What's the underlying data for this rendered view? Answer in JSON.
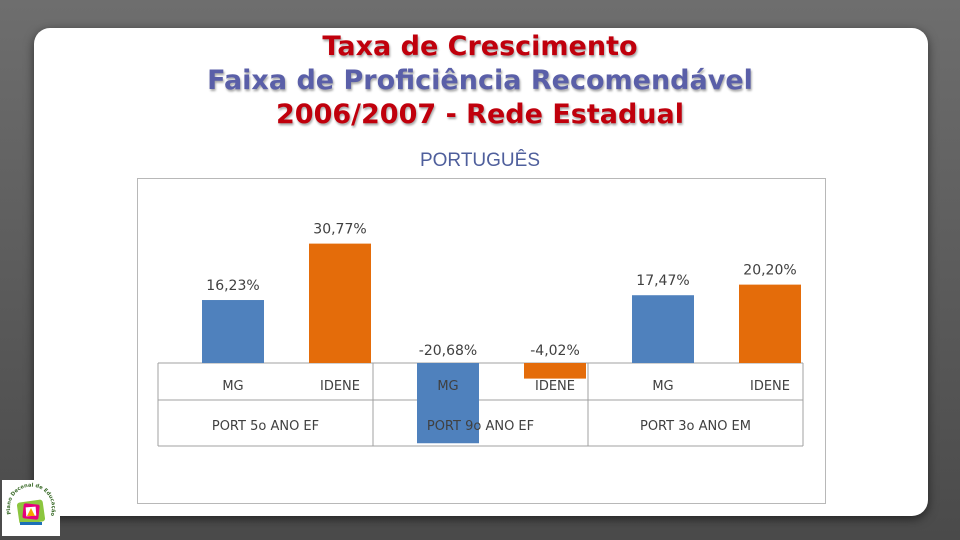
{
  "slide": {
    "title_line1": "Taxa de Crescimento",
    "title_line2": "Faixa de Proficiência Recomendável",
    "title_line3": "2006/2007 - Rede Estadual",
    "subtitle": "PORTUGUÊS"
  },
  "logo": {
    "text": "Plano Decenal de Educação de Minas Gerais"
  },
  "chart_data": {
    "type": "bar",
    "groups": [
      "PORT 5o ANO EF",
      "PORT 9o ANO EF",
      "PORT 3o ANO EM"
    ],
    "subcategories": [
      "MG",
      "IDENE"
    ],
    "series": [
      {
        "subcategory": "MG",
        "color": "#4f81bd",
        "values": [
          16.23,
          -20.68,
          17.47
        ],
        "labels": [
          "16,23%",
          "-20,68%",
          "17,47%"
        ]
      },
      {
        "subcategory": "IDENE",
        "color": "#e46c0a",
        "values": [
          30.77,
          -4.02,
          20.2
        ],
        "labels": [
          "30,77%",
          "-4,02%",
          "20,20%"
        ]
      }
    ],
    "legend": "none",
    "grid": false,
    "ylim": [
      -25,
      35
    ]
  }
}
